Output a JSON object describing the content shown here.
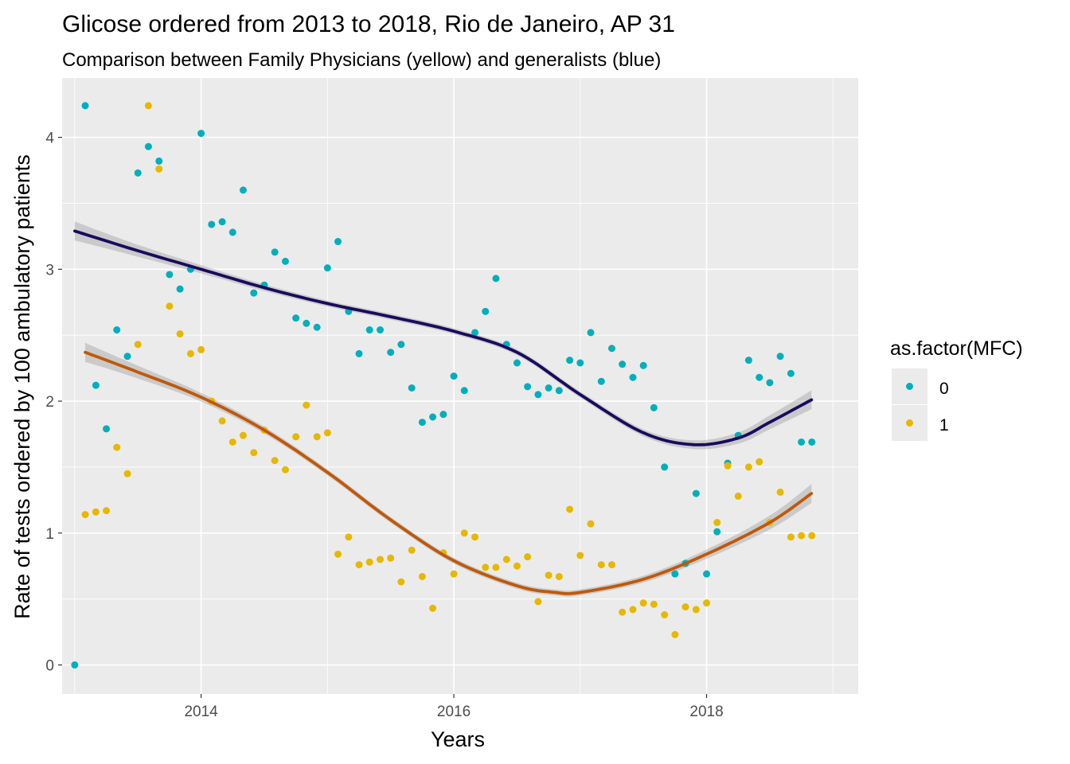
{
  "chart_data": {
    "type": "scatter",
    "title": "Glicose ordered from 2013 to 2018, Rio de Janeiro, AP 31",
    "subtitle": "Comparison between Family Physicians (yellow) and generalists (blue)",
    "xlabel": "Years",
    "ylabel": "Rate of tests ordered by 100 ambulatory patients",
    "xlim": [
      2012.9,
      2019.2
    ],
    "ylim": [
      -0.22,
      4.45
    ],
    "x_ticks": [
      2014,
      2016,
      2018
    ],
    "x_tick_labels": [
      "2014",
      "2016",
      "2018"
    ],
    "y_ticks": [
      0,
      1,
      2,
      3,
      4
    ],
    "y_tick_labels": [
      "0",
      "1",
      "2",
      "3",
      "4"
    ],
    "grid": true,
    "legend": {
      "title": "as.factor(MFC)",
      "position": "right",
      "entries": [
        {
          "label": "0",
          "color": "#00AFBB"
        },
        {
          "label": "1",
          "color": "#E7B800"
        }
      ]
    },
    "series": [
      {
        "name": "0",
        "color": "#00AFBB",
        "x": [
          2013.0,
          2013.083,
          2013.167,
          2013.25,
          2013.333,
          2013.417,
          2013.5,
          2013.583,
          2013.667,
          2013.75,
          2013.833,
          2013.917,
          2014.0,
          2014.083,
          2014.167,
          2014.25,
          2014.333,
          2014.417,
          2014.5,
          2014.583,
          2014.667,
          2014.75,
          2014.833,
          2014.917,
          2015.0,
          2015.083,
          2015.167,
          2015.25,
          2015.333,
          2015.417,
          2015.5,
          2015.583,
          2015.667,
          2015.75,
          2015.833,
          2015.917,
          2016.0,
          2016.083,
          2016.167,
          2016.25,
          2016.333,
          2016.417,
          2016.5,
          2016.583,
          2016.667,
          2016.75,
          2016.833,
          2016.917,
          2017.0,
          2017.083,
          2017.167,
          2017.25,
          2017.333,
          2017.417,
          2017.5,
          2017.583,
          2017.667,
          2017.75,
          2017.833,
          2017.917,
          2018.0,
          2018.083,
          2018.167,
          2018.25,
          2018.333,
          2018.417,
          2018.5,
          2018.583,
          2018.667,
          2018.75,
          2018.833
        ],
        "y": [
          0.0,
          4.24,
          2.12,
          1.79,
          2.54,
          2.34,
          3.73,
          3.93,
          3.82,
          2.96,
          2.85,
          3.0,
          4.03,
          3.34,
          3.36,
          3.28,
          3.6,
          2.82,
          2.88,
          3.13,
          3.06,
          2.63,
          2.59,
          2.56,
          3.01,
          3.21,
          2.68,
          2.36,
          2.54,
          2.54,
          2.37,
          2.43,
          2.1,
          1.84,
          1.88,
          1.9,
          2.19,
          2.08,
          2.52,
          2.68,
          2.93,
          2.43,
          2.29,
          2.11,
          2.05,
          2.1,
          2.08,
          2.31,
          2.29,
          2.52,
          2.15,
          2.4,
          2.28,
          2.18,
          2.27,
          1.95,
          1.5,
          0.69,
          0.77,
          1.3,
          0.69,
          1.01,
          1.53,
          1.74,
          2.31,
          2.18,
          2.14,
          2.34,
          2.21,
          1.69,
          1.69
        ]
      },
      {
        "name": "1",
        "color": "#E7B800",
        "x": [
          2013.083,
          2013.167,
          2013.25,
          2013.333,
          2013.417,
          2013.5,
          2013.583,
          2013.667,
          2013.75,
          2013.833,
          2013.917,
          2014.0,
          2014.083,
          2014.167,
          2014.25,
          2014.333,
          2014.417,
          2014.5,
          2014.583,
          2014.667,
          2014.75,
          2014.833,
          2014.917,
          2015.0,
          2015.083,
          2015.167,
          2015.25,
          2015.333,
          2015.417,
          2015.5,
          2015.583,
          2015.667,
          2015.75,
          2015.833,
          2015.917,
          2016.0,
          2016.083,
          2016.167,
          2016.25,
          2016.333,
          2016.417,
          2016.5,
          2016.583,
          2016.667,
          2016.75,
          2016.833,
          2016.917,
          2017.0,
          2017.083,
          2017.167,
          2017.25,
          2017.333,
          2017.417,
          2017.5,
          2017.583,
          2017.667,
          2017.75,
          2017.833,
          2017.917,
          2018.0,
          2018.083,
          2018.167,
          2018.25,
          2018.333,
          2018.417,
          2018.5,
          2018.583,
          2018.667,
          2018.75,
          2018.833
        ],
        "y": [
          1.14,
          1.16,
          1.17,
          1.65,
          1.45,
          2.43,
          4.24,
          3.76,
          2.72,
          2.51,
          2.36,
          2.39,
          2.0,
          1.85,
          1.69,
          1.74,
          1.61,
          1.78,
          1.55,
          1.48,
          1.73,
          1.97,
          1.73,
          1.76,
          0.84,
          0.97,
          0.76,
          0.78,
          0.8,
          0.81,
          0.63,
          0.87,
          0.67,
          0.43,
          0.85,
          0.69,
          1.0,
          0.97,
          0.74,
          0.74,
          0.8,
          0.75,
          0.82,
          0.48,
          0.68,
          0.67,
          1.18,
          0.83,
          1.07,
          0.76,
          0.76,
          0.4,
          0.42,
          0.47,
          0.46,
          0.38,
          0.23,
          0.44,
          0.42,
          0.47,
          1.08,
          1.51,
          1.28,
          1.5,
          1.54,
          1.08,
          1.31,
          0.97,
          0.98,
          0.98
        ]
      }
    ],
    "smooth_lines": [
      {
        "name": "0",
        "color": "#1A0A5E",
        "x": [
          2013.0,
          2013.5,
          2014.0,
          2014.5,
          2015.0,
          2015.5,
          2016.0,
          2016.5,
          2017.0,
          2017.5,
          2017.9,
          2018.25,
          2018.5,
          2018.83
        ],
        "y": [
          3.29,
          3.14,
          3.0,
          2.86,
          2.74,
          2.64,
          2.53,
          2.37,
          2.05,
          1.76,
          1.67,
          1.72,
          1.84,
          2.01
        ]
      },
      {
        "name": "1",
        "color": "#C0580A",
        "x": [
          2013.083,
          2013.5,
          2014.0,
          2014.5,
          2015.0,
          2015.5,
          2016.0,
          2016.5,
          2016.8,
          2017.0,
          2017.5,
          2018.0,
          2018.5,
          2018.83
        ],
        "y": [
          2.37,
          2.22,
          2.03,
          1.78,
          1.46,
          1.1,
          0.79,
          0.6,
          0.55,
          0.55,
          0.65,
          0.84,
          1.08,
          1.3
        ]
      }
    ]
  }
}
